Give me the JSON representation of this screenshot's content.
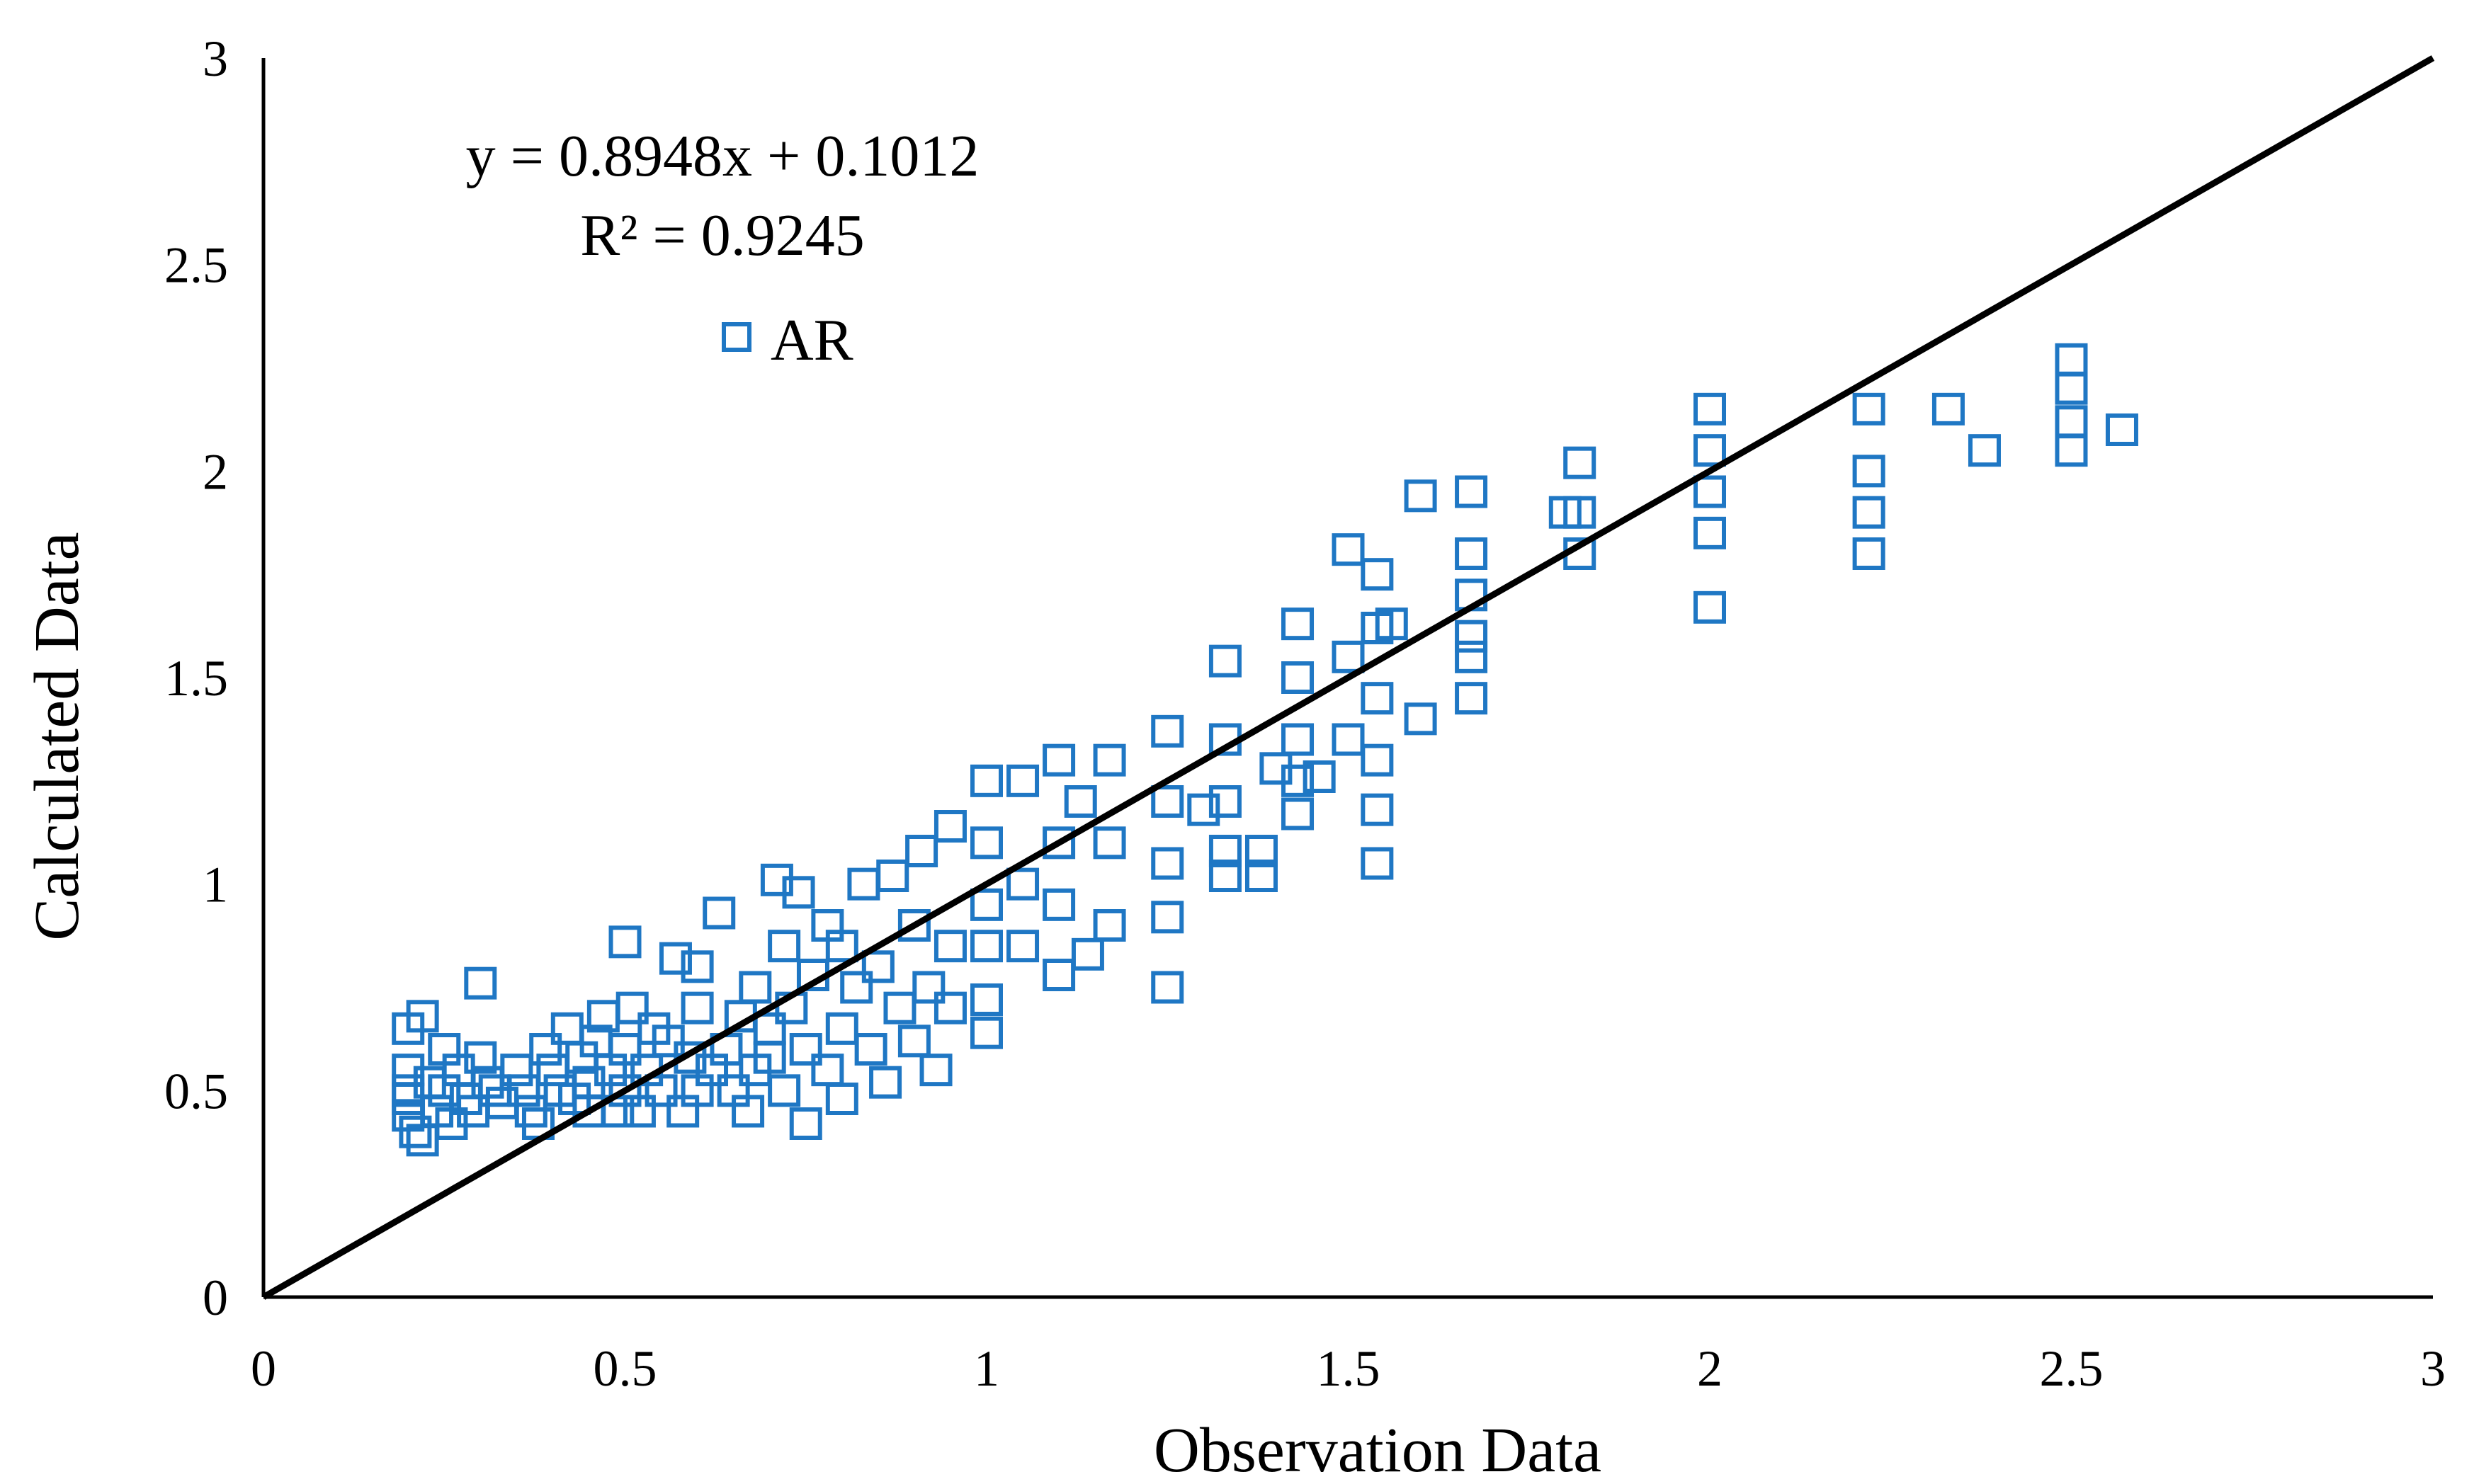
{
  "chart_data": {
    "type": "scatter",
    "title": "",
    "xlabel": "Observation Data",
    "ylabel": "Calculated Data",
    "xlim": [
      0,
      3
    ],
    "ylim": [
      0,
      3
    ],
    "xticks": [
      "0",
      "0.5",
      "1",
      "1.5",
      "2",
      "2.5",
      "3"
    ],
    "yticks": [
      "0",
      "0.5",
      "1",
      "1.5",
      "2",
      "2.5",
      "3"
    ],
    "grid": false,
    "legend": {
      "position": "top-left",
      "label": "AR"
    },
    "annotations": {
      "equation": "y = 0.8948x + 0.1012",
      "r_squared": "R² = 0.9245"
    },
    "reference_line": {
      "name": "1:1 line",
      "x": [
        0,
        3
      ],
      "y": [
        0,
        3
      ],
      "color": "#000000"
    },
    "marker_color": "#1f77c4",
    "series": [
      {
        "name": "AR",
        "marker": "open-square",
        "points": [
          [
            0.2,
            0.65
          ],
          [
            0.2,
            0.55
          ],
          [
            0.2,
            0.5
          ],
          [
            0.2,
            0.48
          ],
          [
            0.2,
            0.44
          ],
          [
            0.21,
            0.4
          ],
          [
            0.22,
            0.68
          ],
          [
            0.22,
            0.38
          ],
          [
            0.23,
            0.52
          ],
          [
            0.24,
            0.45
          ],
          [
            0.25,
            0.6
          ],
          [
            0.25,
            0.5
          ],
          [
            0.26,
            0.42
          ],
          [
            0.27,
            0.55
          ],
          [
            0.28,
            0.48
          ],
          [
            0.29,
            0.45
          ],
          [
            0.3,
            0.76
          ],
          [
            0.3,
            0.58
          ],
          [
            0.31,
            0.52
          ],
          [
            0.32,
            0.5
          ],
          [
            0.33,
            0.47
          ],
          [
            0.35,
            0.55
          ],
          [
            0.36,
            0.5
          ],
          [
            0.37,
            0.45
          ],
          [
            0.38,
            0.42
          ],
          [
            0.39,
            0.6
          ],
          [
            0.4,
            0.55
          ],
          [
            0.41,
            0.5
          ],
          [
            0.42,
            0.65
          ],
          [
            0.43,
            0.48
          ],
          [
            0.44,
            0.58
          ],
          [
            0.45,
            0.45
          ],
          [
            0.45,
            0.52
          ],
          [
            0.46,
            0.62
          ],
          [
            0.47,
            0.68
          ],
          [
            0.48,
            0.55
          ],
          [
            0.49,
            0.45
          ],
          [
            0.5,
            0.86
          ],
          [
            0.5,
            0.6
          ],
          [
            0.5,
            0.5
          ],
          [
            0.51,
            0.7
          ],
          [
            0.52,
            0.45
          ],
          [
            0.53,
            0.55
          ],
          [
            0.54,
            0.65
          ],
          [
            0.55,
            0.5
          ],
          [
            0.56,
            0.62
          ],
          [
            0.57,
            0.82
          ],
          [
            0.58,
            0.45
          ],
          [
            0.59,
            0.58
          ],
          [
            0.6,
            0.8
          ],
          [
            0.6,
            0.7
          ],
          [
            0.6,
            0.5
          ],
          [
            0.62,
            0.55
          ],
          [
            0.63,
            0.93
          ],
          [
            0.64,
            0.6
          ],
          [
            0.65,
            0.5
          ],
          [
            0.66,
            0.68
          ],
          [
            0.67,
            0.45
          ],
          [
            0.68,
            0.75
          ],
          [
            0.68,
            0.55
          ],
          [
            0.7,
            0.65
          ],
          [
            0.7,
            0.58
          ],
          [
            0.71,
            1.01
          ],
          [
            0.72,
            0.85
          ],
          [
            0.72,
            0.5
          ],
          [
            0.73,
            0.7
          ],
          [
            0.74,
            0.98
          ],
          [
            0.75,
            0.6
          ],
          [
            0.75,
            0.42
          ],
          [
            0.76,
            0.78
          ],
          [
            0.78,
            0.9
          ],
          [
            0.78,
            0.55
          ],
          [
            0.8,
            0.85
          ],
          [
            0.8,
            0.65
          ],
          [
            0.8,
            0.48
          ],
          [
            0.82,
            0.75
          ],
          [
            0.83,
            1.0
          ],
          [
            0.84,
            0.6
          ],
          [
            0.85,
            0.8
          ],
          [
            0.86,
            0.52
          ],
          [
            0.87,
            1.02
          ],
          [
            0.88,
            0.7
          ],
          [
            0.9,
            0.9
          ],
          [
            0.9,
            0.62
          ],
          [
            0.91,
            1.08
          ],
          [
            0.92,
            0.75
          ],
          [
            0.93,
            0.55
          ],
          [
            0.95,
            1.14
          ],
          [
            0.95,
            0.85
          ],
          [
            0.95,
            0.7
          ],
          [
            1.0,
            1.25
          ],
          [
            1.0,
            1.1
          ],
          [
            1.0,
            0.95
          ],
          [
            1.0,
            0.85
          ],
          [
            1.0,
            0.72
          ],
          [
            1.0,
            0.64
          ],
          [
            1.05,
            1.25
          ],
          [
            1.05,
            1.0
          ],
          [
            1.05,
            0.85
          ],
          [
            1.1,
            1.3
          ],
          [
            1.1,
            1.1
          ],
          [
            1.1,
            0.95
          ],
          [
            1.1,
            0.78
          ],
          [
            1.13,
            1.2
          ],
          [
            1.14,
            0.83
          ],
          [
            1.17,
            1.3
          ],
          [
            1.17,
            1.1
          ],
          [
            1.17,
            0.9
          ],
          [
            1.25,
            1.37
          ],
          [
            1.25,
            1.2
          ],
          [
            1.25,
            1.05
          ],
          [
            1.25,
            0.92
          ],
          [
            1.25,
            0.75
          ],
          [
            1.3,
            1.18
          ],
          [
            1.33,
            1.54
          ],
          [
            1.33,
            1.35
          ],
          [
            1.33,
            1.2
          ],
          [
            1.33,
            1.08
          ],
          [
            1.33,
            1.02
          ],
          [
            1.38,
            1.08
          ],
          [
            1.38,
            1.02
          ],
          [
            1.4,
            1.28
          ],
          [
            1.43,
            1.63
          ],
          [
            1.43,
            1.5
          ],
          [
            1.43,
            1.35
          ],
          [
            1.43,
            1.25
          ],
          [
            1.43,
            1.17
          ],
          [
            1.46,
            1.26
          ],
          [
            1.5,
            1.81
          ],
          [
            1.5,
            1.55
          ],
          [
            1.5,
            1.35
          ],
          [
            1.54,
            1.75
          ],
          [
            1.54,
            1.62
          ],
          [
            1.54,
            1.45
          ],
          [
            1.54,
            1.3
          ],
          [
            1.54,
            1.18
          ],
          [
            1.54,
            1.05
          ],
          [
            1.56,
            1.63
          ],
          [
            1.6,
            1.94
          ],
          [
            1.6,
            1.4
          ],
          [
            1.67,
            1.95
          ],
          [
            1.67,
            1.8
          ],
          [
            1.67,
            1.7
          ],
          [
            1.67,
            1.6
          ],
          [
            1.67,
            1.55
          ],
          [
            1.67,
            1.45
          ],
          [
            1.8,
            1.9
          ],
          [
            1.82,
            2.02
          ],
          [
            1.82,
            1.9
          ],
          [
            1.82,
            1.8
          ],
          [
            2.0,
            2.15
          ],
          [
            2.0,
            2.05
          ],
          [
            2.0,
            1.95
          ],
          [
            2.0,
            1.85
          ],
          [
            2.0,
            1.67
          ],
          [
            2.22,
            2.15
          ],
          [
            2.22,
            2.0
          ],
          [
            2.22,
            1.9
          ],
          [
            2.22,
            1.8
          ],
          [
            2.33,
            2.15
          ],
          [
            2.38,
            2.05
          ],
          [
            2.5,
            2.27
          ],
          [
            2.5,
            2.2
          ],
          [
            2.5,
            2.12
          ],
          [
            2.5,
            2.05
          ],
          [
            2.57,
            2.1
          ]
        ]
      }
    ]
  }
}
